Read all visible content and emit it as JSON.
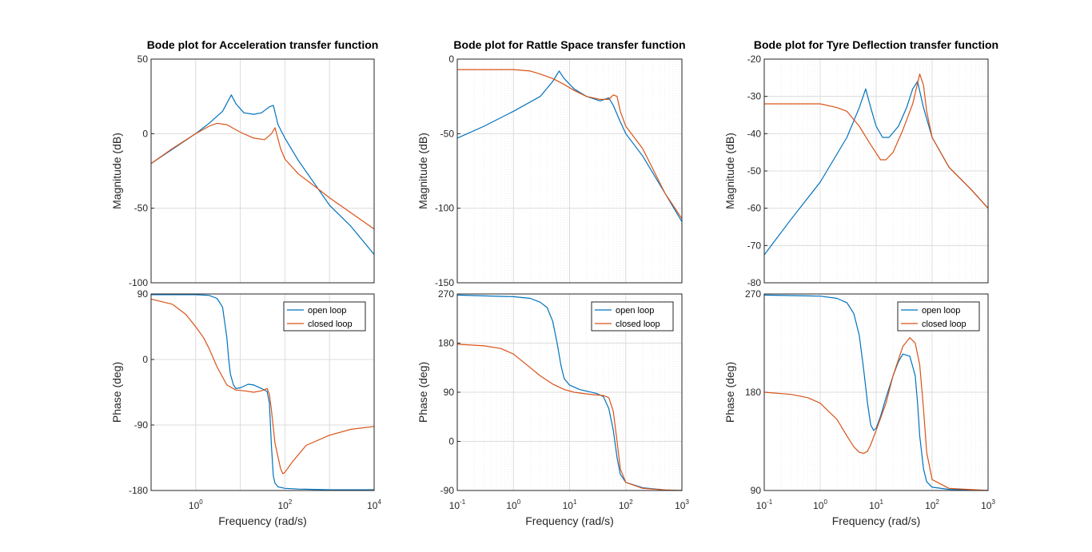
{
  "colors": {
    "open_loop": "#0072BD",
    "closed_loop": "#D95319",
    "grid_major": "#dcdcdc",
    "grid_minor": "#efefef",
    "axis": "#262626"
  },
  "chart_data": [
    {
      "type": "line",
      "title": "Bode plot for Acceleration transfer function",
      "panel": "magnitude",
      "xscale": "log",
      "xlim": [
        0.1,
        10000
      ],
      "ylim": [
        -100,
        50
      ],
      "ylabel": "Magnitude (dB)",
      "xlabel": "",
      "yticks": [
        "50",
        "0",
        "-50",
        "-100"
      ],
      "ytick_values": [
        50,
        0,
        -50,
        -100
      ],
      "grid": "major",
      "series": [
        {
          "name": "open loop",
          "x": [
            0.1,
            0.3,
            1,
            2,
            4,
            6.3,
            8,
            12,
            20,
            30,
            45,
            55,
            70,
            100,
            200,
            500,
            1000,
            3000,
            10000
          ],
          "y": [
            -20,
            -10.5,
            0,
            7,
            15,
            26,
            20,
            14,
            13,
            14,
            18,
            19,
            6,
            -3,
            -18,
            -35,
            -48,
            -62,
            -81
          ]
        },
        {
          "name": "closed loop",
          "x": [
            0.1,
            0.3,
            1,
            2,
            3,
            5,
            10,
            20,
            35,
            50,
            60,
            80,
            100,
            200,
            500,
            1000,
            3000,
            10000
          ],
          "y": [
            -20,
            -10,
            0,
            5,
            7,
            6,
            1,
            -3,
            -4,
            0,
            4,
            -10,
            -17,
            -27,
            -36,
            -43,
            -53,
            -64
          ]
        }
      ]
    },
    {
      "type": "line",
      "panel": "phase",
      "xscale": "log",
      "xlim": [
        0.1,
        10000
      ],
      "ylim": [
        -180,
        90
      ],
      "ylabel": "Phase (deg)",
      "xlabel": "Frequency  (rad/s)",
      "xticks": [
        {
          "base": "10",
          "exp": "0",
          "value": 1
        },
        {
          "base": "10",
          "exp": "2",
          "value": 100
        },
        {
          "base": "10",
          "exp": "4",
          "value": 10000
        }
      ],
      "yticks": [
        "90",
        "0",
        "-90",
        "-180"
      ],
      "ytick_values": [
        90,
        0,
        -90,
        -180
      ],
      "grid": "major",
      "legend": {
        "entries": [
          "open loop",
          "closed loop"
        ],
        "location": "top-right"
      },
      "series": [
        {
          "name": "open loop",
          "x": [
            0.1,
            1,
            2,
            3,
            4,
            5,
            5.5,
            6,
            7,
            8,
            10,
            15,
            20,
            30,
            40,
            45,
            50,
            55,
            60,
            70,
            100,
            200,
            1000,
            10000
          ],
          "y": [
            89,
            89,
            88,
            84,
            72,
            30,
            0,
            -20,
            -35,
            -40,
            -39,
            -34,
            -35,
            -40,
            -44,
            -60,
            -120,
            -160,
            -170,
            -175,
            -177,
            -178,
            -179,
            -179
          ]
        },
        {
          "name": "closed loop",
          "x": [
            0.1,
            0.3,
            0.6,
            1,
            1.5,
            2,
            3,
            5,
            8,
            12,
            20,
            30,
            40,
            45,
            50,
            60,
            80,
            90,
            100,
            150,
            300,
            1000,
            3000,
            10000
          ],
          "y": [
            83,
            76,
            62,
            45,
            30,
            15,
            -10,
            -35,
            -42,
            -43,
            -45,
            -43,
            -40,
            -48,
            -70,
            -115,
            -150,
            -157,
            -155,
            -140,
            -118,
            -104,
            -96,
            -92
          ]
        }
      ]
    },
    {
      "type": "line",
      "title": "Bode plot for Rattle Space transfer function",
      "panel": "magnitude",
      "xscale": "log",
      "xlim": [
        0.1,
        1000
      ],
      "ylim": [
        -150,
        0
      ],
      "ylabel": "Magnitude (dB)",
      "xlabel": "",
      "yticks": [
        "0",
        "-50",
        "-100",
        "-150"
      ],
      "ytick_values": [
        0,
        -50,
        -100,
        -150
      ],
      "grid": "major+minor",
      "series": [
        {
          "name": "open loop",
          "x": [
            0.1,
            0.3,
            1,
            3,
            5,
            6.5,
            8,
            12,
            20,
            35,
            50,
            60,
            80,
            100,
            200,
            500,
            1000
          ],
          "y": [
            -53,
            -45,
            -35,
            -25,
            -15,
            -8,
            -13,
            -20,
            -25,
            -28,
            -26,
            -31,
            -42,
            -50,
            -65,
            -90,
            -109
          ]
        },
        {
          "name": "closed loop",
          "x": [
            0.1,
            0.5,
            1,
            2,
            3,
            5,
            8,
            12,
            20,
            35,
            50,
            60,
            70,
            80,
            100,
            200,
            500,
            1000
          ],
          "y": [
            -7,
            -7,
            -7,
            -8,
            -10,
            -13,
            -17,
            -21,
            -25,
            -27,
            -27,
            -24,
            -25,
            -35,
            -45,
            -60,
            -90,
            -107
          ]
        }
      ]
    },
    {
      "type": "line",
      "panel": "phase",
      "xscale": "log",
      "xlim": [
        0.1,
        1000
      ],
      "ylim": [
        -90,
        270
      ],
      "ylabel": "Phase (deg)",
      "xlabel": "Frequency  (rad/s)",
      "xticks": [
        {
          "base": "10",
          "exp": "-1",
          "value": 0.1
        },
        {
          "base": "10",
          "exp": "0",
          "value": 1
        },
        {
          "base": "10",
          "exp": "1",
          "value": 10
        },
        {
          "base": "10",
          "exp": "2",
          "value": 100
        },
        {
          "base": "10",
          "exp": "3",
          "value": 1000
        }
      ],
      "yticks": [
        "270",
        "180",
        "90",
        "0",
        "-90"
      ],
      "ytick_values": [
        270,
        180,
        90,
        0,
        -90
      ],
      "grid": "major+minor",
      "legend": {
        "entries": [
          "open loop",
          "closed loop"
        ],
        "location": "top-right"
      },
      "series": [
        {
          "name": "open loop",
          "x": [
            0.1,
            1,
            2,
            3,
            4,
            5,
            6,
            7,
            8,
            10,
            15,
            20,
            30,
            40,
            50,
            60,
            70,
            80,
            100,
            200,
            500,
            1000
          ],
          "y": [
            268,
            265,
            262,
            255,
            245,
            220,
            180,
            140,
            115,
            103,
            95,
            92,
            88,
            82,
            60,
            20,
            -30,
            -60,
            -75,
            -85,
            -89,
            -90
          ]
        },
        {
          "name": "closed loop",
          "x": [
            0.1,
            0.3,
            0.6,
            1,
            2,
            3,
            5,
            8,
            12,
            20,
            30,
            40,
            50,
            60,
            70,
            80,
            100,
            200,
            500,
            1000
          ],
          "y": [
            178,
            175,
            170,
            160,
            135,
            120,
            105,
            95,
            90,
            87,
            85,
            84,
            80,
            55,
            0,
            -50,
            -75,
            -86,
            -89,
            -90
          ]
        }
      ]
    },
    {
      "type": "line",
      "title": "Bode plot for Tyre Deflection transfer function",
      "panel": "magnitude",
      "xscale": "log",
      "xlim": [
        0.1,
        1000
      ],
      "ylim": [
        -80,
        -20
      ],
      "ylabel": "Magnitude (dB)",
      "xlabel": "",
      "yticks": [
        "-20",
        "-30",
        "-40",
        "-50",
        "-60",
        "-70",
        "-80"
      ],
      "ytick_values": [
        -20,
        -30,
        -40,
        -50,
        -60,
        -70,
        -80
      ],
      "grid": "major+minor",
      "series": [
        {
          "name": "open loop",
          "x": [
            0.1,
            0.3,
            1,
            3,
            5,
            6.5,
            8,
            10,
            13,
            17,
            25,
            35,
            45,
            55,
            70,
            100,
            200,
            500,
            1000
          ],
          "y": [
            -72.5,
            -63,
            -53,
            -41,
            -33,
            -28,
            -33,
            -38,
            -41,
            -41,
            -38,
            -33,
            -28,
            -26,
            -33,
            -41,
            -49,
            -55,
            -60
          ]
        },
        {
          "name": "closed loop",
          "x": [
            0.1,
            0.3,
            1,
            2,
            3,
            5,
            8,
            12,
            15,
            20,
            30,
            45,
            60,
            70,
            80,
            100,
            200,
            500,
            1000
          ],
          "y": [
            -32,
            -32,
            -32,
            -33,
            -34,
            -38,
            -43,
            -47,
            -47,
            -45,
            -39,
            -32,
            -24,
            -27,
            -34,
            -41,
            -49,
            -55,
            -60
          ]
        }
      ]
    },
    {
      "type": "line",
      "panel": "phase",
      "xscale": "log",
      "xlim": [
        0.1,
        1000
      ],
      "ylim": [
        90,
        270
      ],
      "ylabel": "Phase (deg)",
      "xlabel": "Frequency  (rad/s)",
      "xticks": [
        {
          "base": "10",
          "exp": "-1",
          "value": 0.1
        },
        {
          "base": "10",
          "exp": "0",
          "value": 1
        },
        {
          "base": "10",
          "exp": "1",
          "value": 10
        },
        {
          "base": "10",
          "exp": "2",
          "value": 100
        },
        {
          "base": "10",
          "exp": "3",
          "value": 1000
        }
      ],
      "yticks": [
        "270",
        "180",
        "90"
      ],
      "ytick_values": [
        270,
        180,
        90
      ],
      "grid": "major+minor",
      "legend": {
        "entries": [
          "open loop",
          "closed loop"
        ],
        "location": "top-right"
      },
      "series": [
        {
          "name": "open loop",
          "x": [
            0.1,
            1,
            2,
            3,
            4,
            5,
            6,
            7,
            8,
            9,
            10,
            12,
            15,
            20,
            25,
            30,
            40,
            50,
            55,
            60,
            70,
            80,
            100,
            200,
            1000
          ],
          "y": [
            269,
            268,
            266,
            262,
            252,
            232,
            200,
            170,
            150,
            145,
            147,
            158,
            175,
            195,
            208,
            215,
            213,
            195,
            170,
            140,
            110,
            98,
            93,
            91,
            90
          ]
        },
        {
          "name": "closed loop",
          "x": [
            0.1,
            0.3,
            0.6,
            1,
            2,
            3,
            4,
            5,
            6,
            7,
            8,
            10,
            15,
            20,
            30,
            40,
            50,
            60,
            70,
            80,
            100,
            200,
            1000
          ],
          "y": [
            180,
            178,
            175,
            170,
            155,
            140,
            130,
            125,
            124,
            126,
            132,
            145,
            170,
            195,
            222,
            230,
            225,
            205,
            165,
            125,
            100,
            92,
            90
          ]
        }
      ]
    }
  ]
}
